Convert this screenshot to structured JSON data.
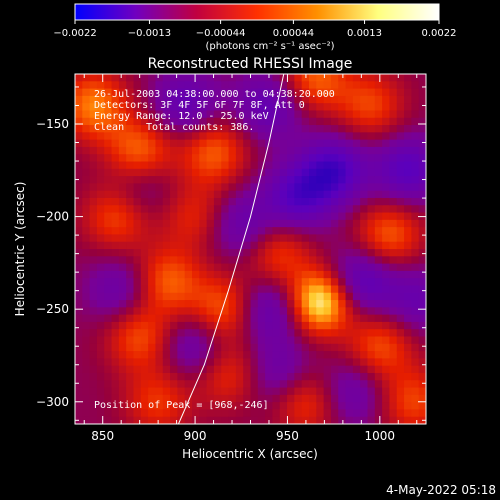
{
  "chart_data": {
    "type": "heatmap",
    "title": "Reconstructed RHESSI Image",
    "xlabel": "Heliocentric X (arcsec)",
    "ylabel": "Heliocentric Y (arcsec)",
    "xlim": [
      835,
      1025
    ],
    "ylim": [
      -312,
      -123
    ],
    "xticks": [
      850,
      900,
      950,
      1000
    ],
    "yticks": [
      -150,
      -200,
      -250,
      -300
    ],
    "xtick_labels": [
      "850",
      "900",
      "950",
      "1000"
    ],
    "ytick_labels": [
      "−150",
      "−200",
      "−250",
      "−300"
    ],
    "colorbar": {
      "range": [
        -0.0022,
        0.0022
      ],
      "ticks": [
        -0.0022,
        -0.0013,
        -0.00044,
        0.00044,
        0.0013,
        0.0022
      ],
      "tick_labels": [
        "−0.0022",
        "−0.0013",
        "−0.00044",
        "0.00044",
        "0.0013",
        "0.0022"
      ],
      "unit": "(photons cm⁻² s⁻¹ asec⁻²)",
      "colors": [
        "#0000ff",
        "#7000c0",
        "#c00040",
        "#ff3000",
        "#ff9000",
        "#ffff80",
        "#ffffff"
      ]
    },
    "annotations": {
      "time": "26-Jul-2003 04:38:00.000 to 04:38:20.000",
      "detectors": "Detectors: 3F 4F 5F 6F 7F 8F, Att 0",
      "energy": "Energy Range: 12.0 - 25.0 keV",
      "clean": "Clean",
      "counts": "Total counts: 386.",
      "peak": "Position of Peak = [968,-246]"
    },
    "peak": {
      "x": 968,
      "y": -246
    },
    "limb_curve_points": [
      [
        891,
        -312
      ],
      [
        905,
        -280
      ],
      [
        918,
        -240
      ],
      [
        930,
        -200
      ],
      [
        940,
        -160
      ],
      [
        948,
        -123
      ]
    ],
    "features": [
      {
        "x": 968,
        "y": -246,
        "amp": 0.0022
      },
      {
        "x": 845,
        "y": -140,
        "amp": 0.0014
      },
      {
        "x": 870,
        "y": -165,
        "amp": 0.0013
      },
      {
        "x": 910,
        "y": -165,
        "amp": 0.0012
      },
      {
        "x": 858,
        "y": -200,
        "amp": 0.0011
      },
      {
        "x": 885,
        "y": -235,
        "amp": 0.0012
      },
      {
        "x": 870,
        "y": -265,
        "amp": 0.0011
      },
      {
        "x": 915,
        "y": -250,
        "amp": 0.0012
      },
      {
        "x": 945,
        "y": -220,
        "amp": 0.001
      },
      {
        "x": 1005,
        "y": -210,
        "amp": 0.0012
      },
      {
        "x": 995,
        "y": -140,
        "amp": 0.001
      },
      {
        "x": 965,
        "y": -125,
        "amp": 0.0012
      },
      {
        "x": 1000,
        "y": -270,
        "amp": 0.0011
      },
      {
        "x": 1018,
        "y": -300,
        "amp": 0.001
      },
      {
        "x": 960,
        "y": -300,
        "amp": 0.001
      },
      {
        "x": 880,
        "y": -300,
        "amp": 0.0009
      },
      {
        "x": 918,
        "y": -285,
        "amp": 0.0009
      },
      {
        "x": 900,
        "y": -200,
        "amp": 0.0008
      },
      {
        "x": 940,
        "y": -140,
        "amp": -0.001
      },
      {
        "x": 975,
        "y": -175,
        "amp": -0.0014
      },
      {
        "x": 1015,
        "y": -175,
        "amp": -0.0012
      },
      {
        "x": 955,
        "y": -190,
        "amp": -0.0012
      },
      {
        "x": 895,
        "y": -140,
        "amp": -0.001
      },
      {
        "x": 925,
        "y": -205,
        "amp": -0.0009
      },
      {
        "x": 990,
        "y": -235,
        "amp": -0.0012
      },
      {
        "x": 940,
        "y": -250,
        "amp": -0.001
      },
      {
        "x": 860,
        "y": -240,
        "amp": -0.0008
      },
      {
        "x": 900,
        "y": -270,
        "amp": -0.0009
      },
      {
        "x": 985,
        "y": -295,
        "amp": -0.0008
      },
      {
        "x": 945,
        "y": -285,
        "amp": -0.0008
      },
      {
        "x": 1020,
        "y": -245,
        "amp": -0.0008
      },
      {
        "x": 870,
        "y": -185,
        "amp": -0.0007
      }
    ]
  },
  "footer": {
    "timestamp": "4-May-2022 05:18"
  }
}
